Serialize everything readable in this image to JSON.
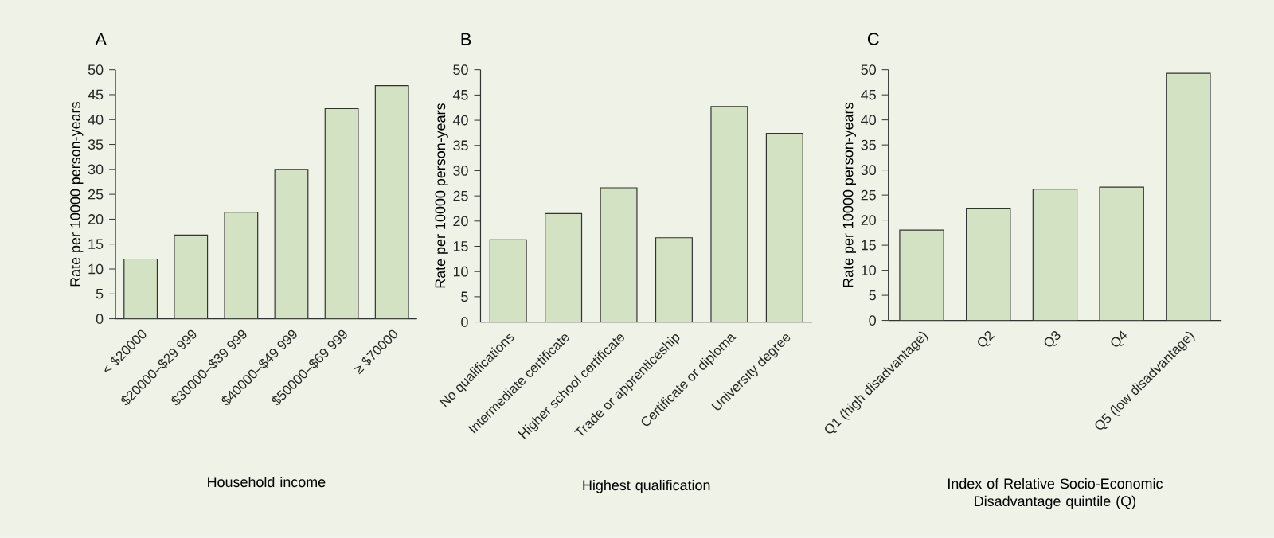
{
  "chart_data": [
    {
      "type": "bar",
      "title": "A",
      "xlabel": "Household income",
      "ylabel": "Rate per 10000 person-years",
      "categories": [
        "< $20000",
        "$20000–$29 999",
        "$30000–$39 999",
        "$40000–$49 999",
        "$50000–$69 999",
        "≥ $70000"
      ],
      "values": [
        12,
        16.8,
        21.4,
        30,
        42.2,
        46.8
      ],
      "color": "#d3e2c2",
      "ylim": [
        0,
        50
      ],
      "yticks": [
        0,
        5,
        10,
        15,
        20,
        25,
        30,
        35,
        40,
        45,
        50
      ]
    },
    {
      "type": "bar",
      "title": "B",
      "xlabel": "Highest qualification",
      "ylabel": "Rate per 10000 person-years",
      "categories": [
        "No qualifications",
        "Intermediate certificate",
        "Higher school certificate",
        "Trade or apprenticeship",
        "Certificate or diploma",
        "University degree"
      ],
      "values": [
        16.3,
        21.5,
        26.6,
        16.7,
        42.7,
        37.4
      ],
      "color": "#d3e2c2",
      "ylim": [
        0,
        50
      ],
      "yticks": [
        0,
        5,
        10,
        15,
        20,
        25,
        30,
        35,
        40,
        45,
        50
      ]
    },
    {
      "type": "bar",
      "title": "C",
      "xlabel": "Index of Relative Socio-Economic Disadvantage quintile (Q)",
      "ylabel": "Rate per 10000 person-years",
      "categories": [
        "Q1 (high disadvantage)",
        "Q2",
        "Q3",
        "Q4",
        "Q5 (low disadvantage)"
      ],
      "values": [
        18,
        22.4,
        26.2,
        26.6,
        49.3
      ],
      "color": "#d3e2c2",
      "ylim": [
        0,
        50
      ],
      "yticks": [
        0,
        5,
        10,
        15,
        20,
        25,
        30,
        35,
        40,
        45,
        50
      ]
    }
  ]
}
